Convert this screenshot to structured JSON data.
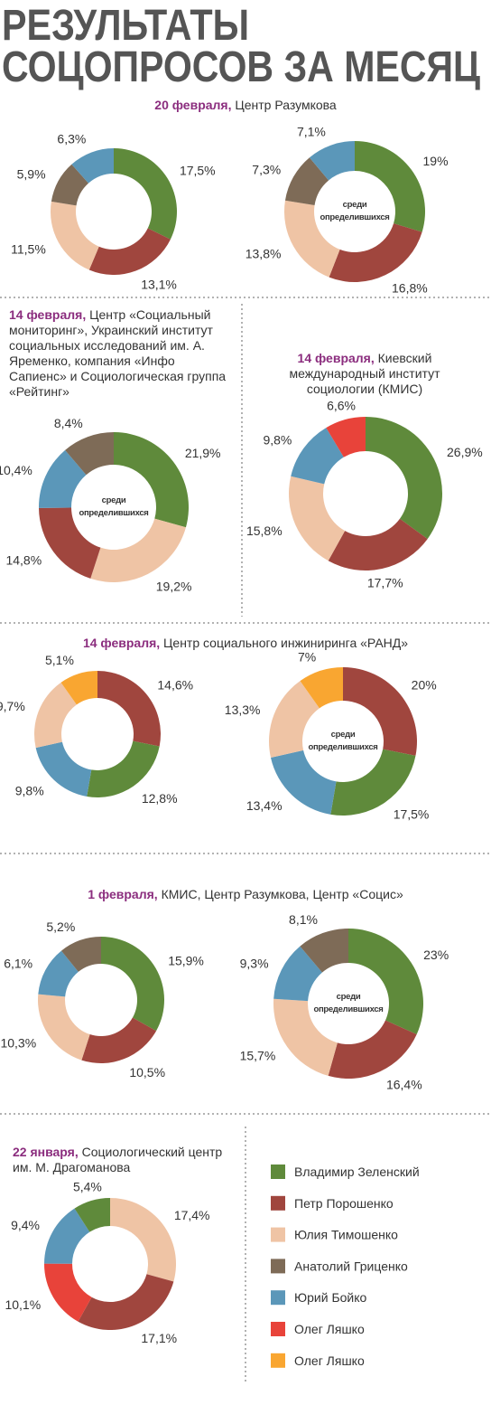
{
  "title": [
    "РЕЗУЛЬТАТЫ",
    "СОЦОПРОСОВ ЗА МЕСЯЦ"
  ],
  "legend": [
    {
      "name": "Владимир Зеленский",
      "color": "#5f8a3b"
    },
    {
      "name": "Петр Порошенко",
      "color": "#a0463e"
    },
    {
      "name": "Юлия Тимошенко",
      "color": "#efc4a5"
    },
    {
      "name": "Анатолий Гриценко",
      "color": "#7e6b57"
    },
    {
      "name": "Юрий Бойко",
      "color": "#5b97b9"
    },
    {
      "name": "Олег Ляшко",
      "color": "#e8433a"
    },
    {
      "name": "Олег Ляшко",
      "color": "#f9a631"
    }
  ],
  "sections": [
    {
      "date": "20 февраля,",
      "source": "Центр Разумкова",
      "charts": [
        {
          "type": "pie",
          "values": [
            17.5,
            13.1,
            11.5,
            5.9,
            6.3
          ],
          "value_labels": [
            "17,5%",
            "13,1%",
            "11,5%",
            "5,9%",
            "6,3%"
          ],
          "colors": [
            "#5f8a3b",
            "#a0463e",
            "#efc4a5",
            "#7e6b57",
            "#5b97b9"
          ]
        },
        {
          "type": "pie",
          "values": [
            19,
            16.8,
            13.8,
            7.3,
            7.1
          ],
          "value_labels": [
            "19%",
            "16,8%",
            "13,8%",
            "7,3%",
            "7,1%"
          ],
          "colors": [
            "#5f8a3b",
            "#a0463e",
            "#efc4a5",
            "#7e6b57",
            "#5b97b9"
          ],
          "center_label": "среди определившихся"
        }
      ]
    },
    {
      "date": "14 февраля,",
      "source": "Центр «Социальный мониторинг», Украинский институт социальных исследований им. А. Яременко, компания «Инфо Сапиенс» и Социологическая группа «Рейтинг»",
      "charts": [
        {
          "type": "pie",
          "values": [
            21.9,
            19.2,
            14.8,
            10.4,
            8.4
          ],
          "value_labels": [
            "21,9%",
            "19,2%",
            "14,8%",
            "10,4%",
            "8,4%"
          ],
          "colors": [
            "#5f8a3b",
            "#efc4a5",
            "#a0463e",
            "#5b97b9",
            "#7e6b57"
          ],
          "center_label": "среди определившихся"
        }
      ]
    },
    {
      "date": "14 февраля,",
      "source": "Киевский международный институт социологии (КМИС)",
      "charts": [
        {
          "type": "pie",
          "values": [
            26.9,
            17.7,
            15.8,
            9.8,
            6.6
          ],
          "value_labels": [
            "26,9%",
            "17,7%",
            "15,8%",
            "9,8%",
            "6,6%"
          ],
          "colors": [
            "#5f8a3b",
            "#a0463e",
            "#efc4a5",
            "#5b97b9",
            "#e8433a"
          ]
        }
      ]
    },
    {
      "date": "14 февраля,",
      "source": "Центр социального инжиниринга «РАНД»",
      "charts": [
        {
          "type": "pie",
          "values": [
            14.6,
            12.8,
            9.8,
            9.7,
            5.1
          ],
          "value_labels": [
            "14,6%",
            "12,8%",
            "9,8%",
            "9,7%",
            "5,1%"
          ],
          "colors": [
            "#a0463e",
            "#5f8a3b",
            "#5b97b9",
            "#efc4a5",
            "#f9a631"
          ]
        },
        {
          "type": "pie",
          "values": [
            20,
            17.5,
            13.4,
            13.3,
            7
          ],
          "value_labels": [
            "20%",
            "17,5%",
            "13,4%",
            "13,3%",
            "7%"
          ],
          "colors": [
            "#a0463e",
            "#5f8a3b",
            "#5b97b9",
            "#efc4a5",
            "#f9a631"
          ],
          "center_label": "среди определившихся"
        }
      ]
    },
    {
      "date": "1 февраля,",
      "source": "КМИС, Центр Разумкова, Центр «Социс»",
      "charts": [
        {
          "type": "pie",
          "values": [
            15.9,
            10.5,
            10.3,
            6.1,
            5.2
          ],
          "value_labels": [
            "15,9%",
            "10,5%",
            "10,3%",
            "6,1%",
            "5,2%"
          ],
          "colors": [
            "#5f8a3b",
            "#a0463e",
            "#efc4a5",
            "#5b97b9",
            "#7e6b57"
          ]
        },
        {
          "type": "pie",
          "values": [
            23,
            16.4,
            15.7,
            9.3,
            8.1
          ],
          "value_labels": [
            "23%",
            "16,4%",
            "15,7%",
            "9,3%",
            "8,1%"
          ],
          "colors": [
            "#5f8a3b",
            "#a0463e",
            "#efc4a5",
            "#5b97b9",
            "#7e6b57"
          ],
          "center_label": "среди определившихся"
        }
      ]
    },
    {
      "date": "22 января,",
      "source": "Социологический центр им. М. Драгоманова",
      "charts": [
        {
          "type": "pie",
          "values": [
            17.4,
            17.1,
            10.1,
            9.4,
            5.4
          ],
          "value_labels": [
            "17,4%",
            "17,1%",
            "10,1%",
            "9,4%",
            "5,4%"
          ],
          "colors": [
            "#efc4a5",
            "#a0463e",
            "#e8433a",
            "#5b97b9",
            "#5f8a3b"
          ]
        }
      ]
    }
  ]
}
